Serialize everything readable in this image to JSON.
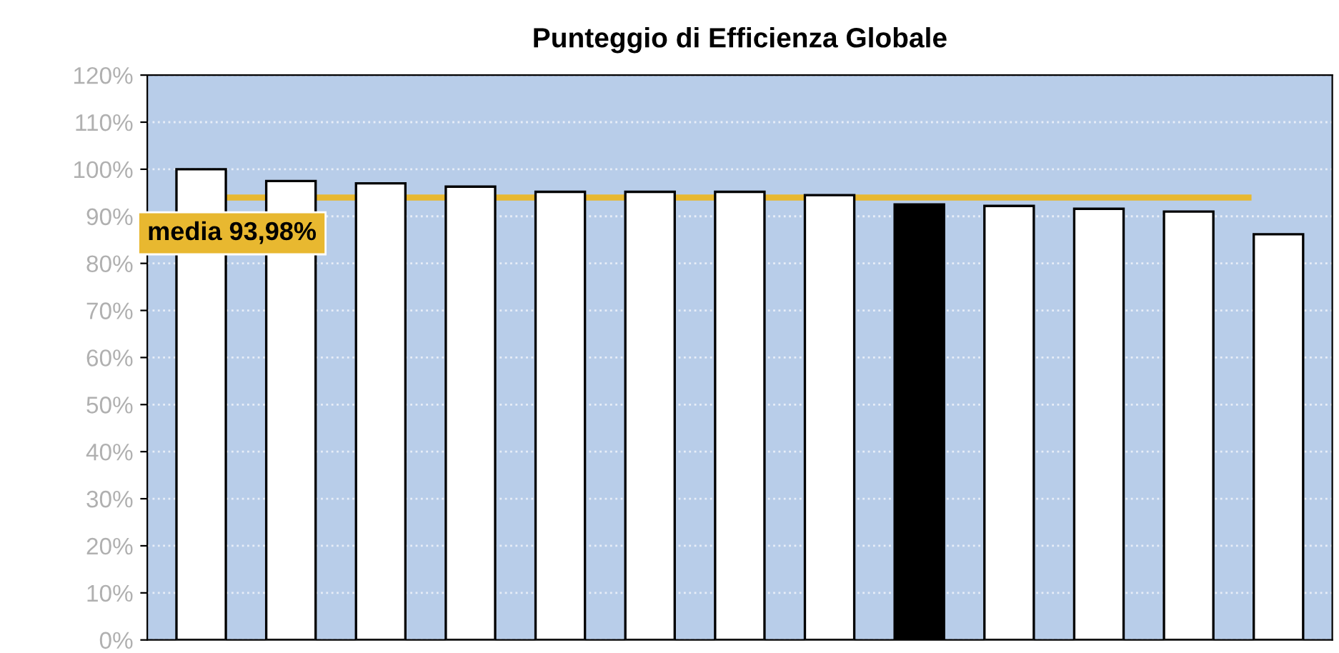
{
  "chart_data": {
    "type": "bar",
    "title": "Punteggio di Efficienza Globale",
    "categories": [
      null,
      null,
      null,
      null,
      null,
      null,
      null,
      null,
      null,
      null,
      null,
      null,
      null
    ],
    "values": [
      100,
      97.5,
      97,
      96.3,
      95.2,
      95.2,
      95.2,
      94.5,
      92.5,
      92.2,
      91.6,
      91,
      86.2
    ],
    "colors": [
      "#ffffff",
      "#ffffff",
      "#ffffff",
      "#ffffff",
      "#ffffff",
      "#ffffff",
      "#ffffff",
      "#ffffff",
      "#000000",
      "#ffffff",
      "#ffffff",
      "#ffffff",
      "#ffffff"
    ],
    "ylim": [
      0,
      120
    ],
    "yticks": [
      {
        "value": 0,
        "label": "0%"
      },
      {
        "value": 10,
        "label": "10%"
      },
      {
        "value": 20,
        "label": "20%"
      },
      {
        "value": 30,
        "label": "30%"
      },
      {
        "value": 40,
        "label": "40%"
      },
      {
        "value": 50,
        "label": "50%"
      },
      {
        "value": 60,
        "label": "60%"
      },
      {
        "value": 70,
        "label": "70%"
      },
      {
        "value": 80,
        "label": "80%"
      },
      {
        "value": 90,
        "label": "90%"
      },
      {
        "value": 100,
        "label": "100%"
      },
      {
        "value": 110,
        "label": "110%"
      },
      {
        "value": 120,
        "label": "120%"
      }
    ],
    "grid": "y",
    "ref_lines": [
      {
        "axis": "y",
        "value": 93.98,
        "label": "media 93,98%",
        "color": "#e8b830"
      }
    ]
  }
}
